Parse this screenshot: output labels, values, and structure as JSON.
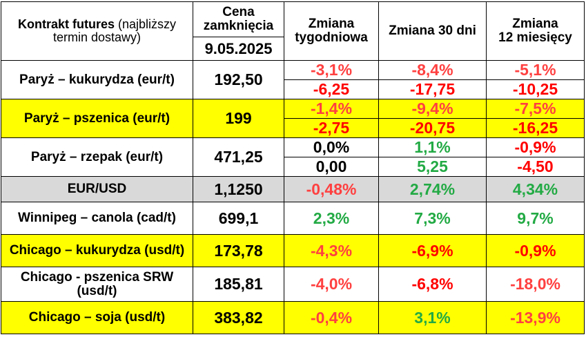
{
  "header": {
    "contract_bold": "Kontrakt futures",
    "contract_light1": " (najbliższy",
    "contract_light2": "termin dostawy)",
    "price_line1": "Cena",
    "price_line2": "zamknięcia",
    "price_date": "9.05.2025",
    "weekly_line1": "Zmiana",
    "weekly_line2": "tygodniowa",
    "m30": "Zmiana 30 dni",
    "m12_line1": "Zmiana",
    "m12_line2": "12 miesięcy"
  },
  "rows": [
    {
      "name": "Paryż – kukurydza  (eur/t)",
      "price": "192,50",
      "w_pct": "-3,1%",
      "m30_pct": "-8,4%",
      "m12_pct": "-5,1%",
      "w_abs": "-6,25",
      "m30_abs": "-17,75",
      "m12_abs": "-10,25"
    },
    {
      "name": "Paryż – pszenica (eur/t)",
      "price": "199",
      "w_pct": "-1,4%",
      "m30_pct": "-9,4%",
      "m12_pct": "-7,5%",
      "w_abs": "-2,75",
      "m30_abs": "-20,75",
      "m12_abs": "-16,25"
    },
    {
      "name": "Paryż – rzepak (eur/t)",
      "price": "471,25",
      "w_pct": "0,0%",
      "m30_pct": "1,1%",
      "m12_pct": "-0,9%",
      "w_abs": "0,00",
      "m30_abs": "5,25",
      "m12_abs": "-4,50"
    },
    {
      "name": "EUR/USD",
      "price": "1,1250",
      "w_pct": "-0,48%",
      "m30_pct": "2,74%",
      "m12_pct": "4,34%"
    },
    {
      "name": "Winnipeg – canola (cad/t)",
      "price": "699,1",
      "w_pct": "2,3%",
      "m30_pct": "7,3%",
      "m12_pct": "9,7%"
    },
    {
      "name": "Chicago – kukurydza (usd/t)",
      "price": "173,78",
      "w_pct": "-4,3%",
      "m30_pct": "-6,9%",
      "m12_pct": "-0,9%"
    },
    {
      "name_line1": "Chicago - pszenica SRW",
      "name_line2": "(usd/t)",
      "price": "185,81",
      "w_pct": "-4,0%",
      "m30_pct": "-6,8%",
      "m12_pct": "-18,0%"
    },
    {
      "name": "Chicago – soja (usd/t)",
      "price": "383,82",
      "w_pct": "-0,4%",
      "m30_pct": "3,1%",
      "m12_pct": "-13,9%"
    }
  ],
  "colors": {
    "highlight_yellow": "#ffff00",
    "highlight_gray": "#d9d9d9",
    "negative": "#ff4040",
    "negative_strong": "#ff0000",
    "positive": "#22aa44"
  }
}
